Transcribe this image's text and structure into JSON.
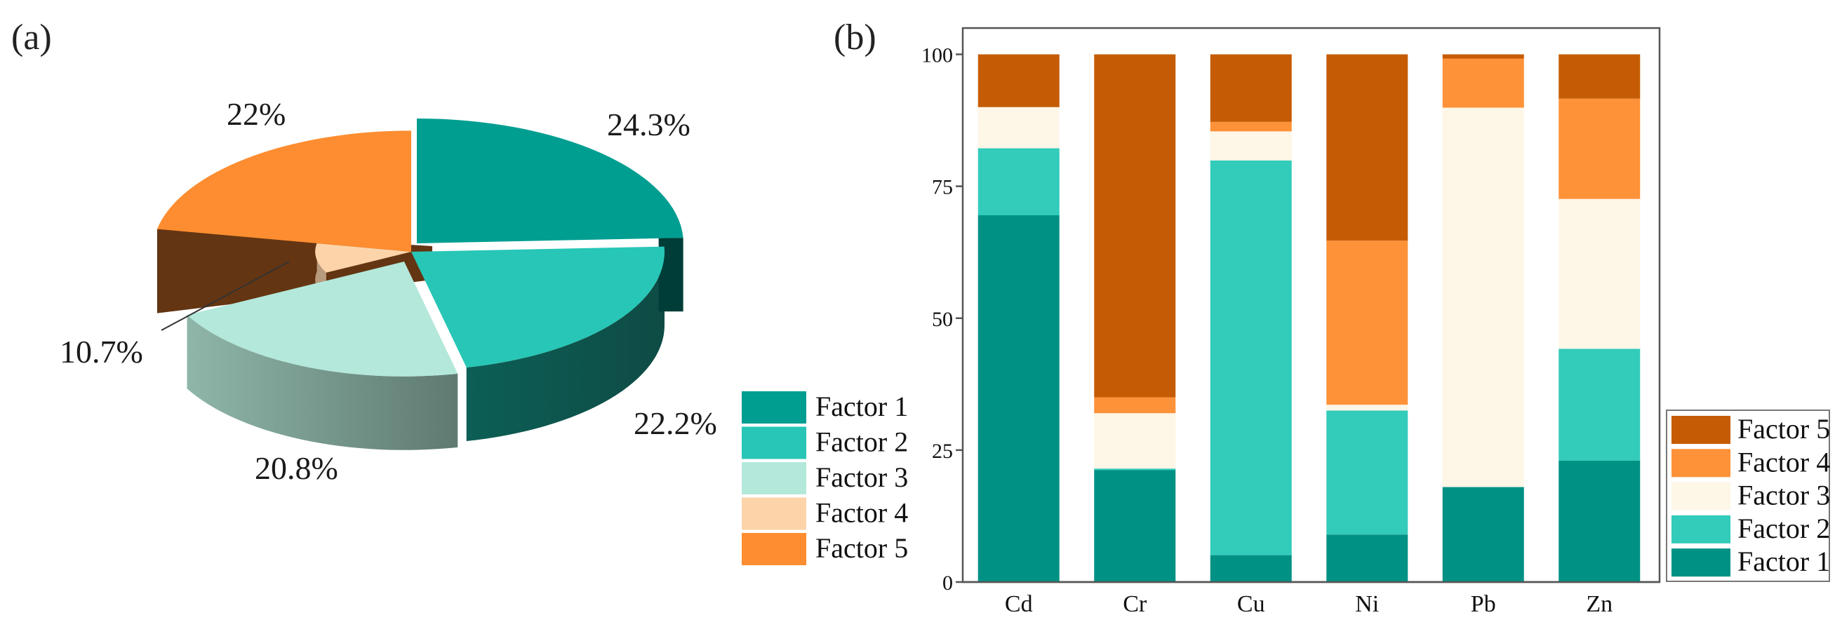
{
  "panels": {
    "a": {
      "label": "(a)"
    },
    "b": {
      "label": "(b)"
    }
  },
  "colors": {
    "pie": {
      "Factor 1": "#009e91",
      "Factor 2": "#27c6b6",
      "Factor 3": "#b3e8da",
      "Factor 4": "#fdd4a9",
      "Factor 5": "#fd8d30"
    },
    "bar": {
      "Factor 1": "#009185",
      "Factor 2": "#33cbba",
      "Factor 3": "#fef6e6",
      "Factor 4": "#fe9238",
      "Factor 5": "#c55c05"
    }
  },
  "chart_data": [
    {
      "type": "pie",
      "title": "(a)",
      "style": "3d-exploded",
      "slices": [
        {
          "name": "Factor 1",
          "value": 24.3,
          "label": "24.3%"
        },
        {
          "name": "Factor 2",
          "value": 22.2,
          "label": "22.2%"
        },
        {
          "name": "Factor 3",
          "value": 20.8,
          "label": "20.8%"
        },
        {
          "name": "Factor 4",
          "value": 10.7,
          "label": "10.7%"
        },
        {
          "name": "Factor 5",
          "value": 22.0,
          "label": "22%"
        }
      ],
      "legend": {
        "placement": "right",
        "entries": [
          "Factor 1",
          "Factor 2",
          "Factor 3",
          "Factor 4",
          "Factor 5"
        ]
      }
    },
    {
      "type": "bar",
      "stacked": true,
      "title": "(b)",
      "categories": [
        "Cd",
        "Cr",
        "Cu",
        "Ni",
        "Pb",
        "Zn"
      ],
      "series": [
        {
          "name": "Factor 1",
          "values": [
            69.5,
            21.2,
            5.1,
            9.0,
            18.0,
            23.0
          ]
        },
        {
          "name": "Factor 2",
          "values": [
            12.7,
            0.3,
            74.8,
            23.5,
            0.0,
            21.2
          ]
        },
        {
          "name": "Factor 3",
          "values": [
            7.8,
            10.5,
            5.5,
            1.1,
            71.9,
            28.4
          ]
        },
        {
          "name": "Factor 4",
          "values": [
            0.0,
            3.0,
            1.8,
            31.1,
            9.3,
            19.0
          ]
        },
        {
          "name": "Factor 5",
          "values": [
            10.0,
            65.0,
            12.8,
            35.3,
            0.8,
            8.4
          ]
        }
      ],
      "xlabel": "",
      "ylabel": "",
      "ylim": [
        0,
        105
      ],
      "yticks": [
        0,
        25,
        50,
        75,
        100
      ],
      "grid": false,
      "legend": {
        "placement": "bottom-right-outside",
        "entries": [
          "Factor 5",
          "Factor 4",
          "Factor 3",
          "Factor 2",
          "Factor 1"
        ]
      }
    }
  ]
}
